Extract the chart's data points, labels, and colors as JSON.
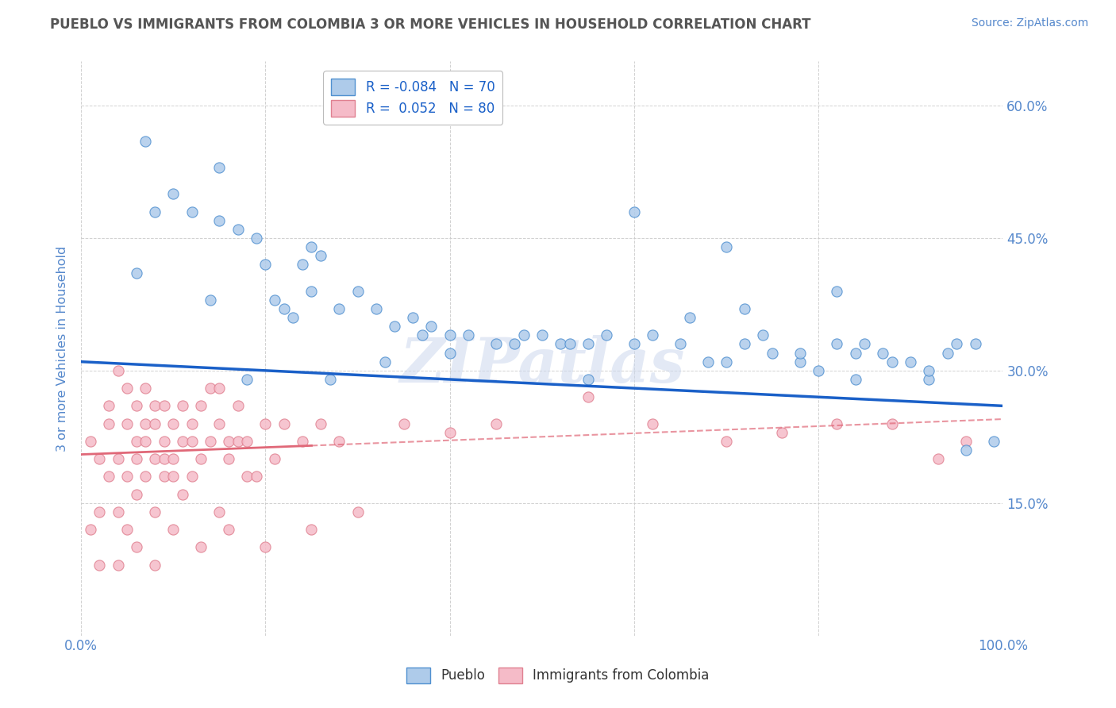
{
  "title": "PUEBLO VS IMMIGRANTS FROM COLOMBIA 3 OR MORE VEHICLES IN HOUSEHOLD CORRELATION CHART",
  "source_text": "Source: ZipAtlas.com",
  "ylabel": "3 or more Vehicles in Household",
  "xlim": [
    0.0,
    100.0
  ],
  "ylim": [
    0.0,
    65.0
  ],
  "yticks": [
    0.0,
    15.0,
    30.0,
    45.0,
    60.0
  ],
  "xticks": [
    0.0,
    20.0,
    40.0,
    60.0,
    80.0,
    100.0
  ],
  "legend_label_blue": "R = -0.084   N = 70",
  "legend_label_pink": "R =  0.052   N = 80",
  "blue_scatter_color": "#aecbea",
  "pink_scatter_color": "#f5bbc8",
  "blue_edge_color": "#5090d0",
  "pink_edge_color": "#e08090",
  "blue_line_color": "#1a60c8",
  "pink_line_color": "#e06878",
  "watermark": "ZIPatlas",
  "watermark_color": "#ccd8ee",
  "background_color": "#ffffff",
  "grid_color": "#cccccc",
  "title_color": "#555555",
  "tick_label_color": "#5588cc",
  "blue_x": [
    7,
    10,
    12,
    15,
    17,
    19,
    20,
    21,
    23,
    24,
    25,
    26,
    28,
    30,
    32,
    34,
    36,
    37,
    38,
    40,
    42,
    45,
    48,
    50,
    52,
    55,
    57,
    60,
    62,
    65,
    68,
    70,
    72,
    74,
    75,
    78,
    80,
    82,
    84,
    85,
    87,
    90,
    92,
    94,
    95,
    97,
    99,
    8,
    14,
    18,
    22,
    27,
    33,
    40,
    47,
    53,
    60,
    66,
    72,
    78,
    84,
    88,
    92,
    96,
    6,
    15,
    25,
    55,
    70,
    82
  ],
  "blue_y": [
    56,
    50,
    48,
    53,
    46,
    45,
    42,
    38,
    36,
    42,
    39,
    43,
    37,
    39,
    37,
    35,
    36,
    34,
    35,
    34,
    34,
    33,
    34,
    34,
    33,
    33,
    34,
    33,
    34,
    33,
    31,
    31,
    33,
    34,
    32,
    31,
    30,
    33,
    32,
    33,
    32,
    31,
    29,
    32,
    33,
    33,
    22,
    48,
    38,
    29,
    37,
    29,
    31,
    32,
    33,
    33,
    48,
    36,
    37,
    32,
    29,
    31,
    30,
    21,
    41,
    47,
    44,
    29,
    44,
    39
  ],
  "pink_x": [
    1,
    1,
    2,
    2,
    2,
    3,
    3,
    3,
    4,
    4,
    4,
    5,
    5,
    5,
    5,
    6,
    6,
    6,
    6,
    7,
    7,
    7,
    7,
    8,
    8,
    8,
    8,
    9,
    9,
    9,
    9,
    10,
    10,
    10,
    11,
    11,
    11,
    12,
    12,
    12,
    13,
    13,
    14,
    14,
    15,
    15,
    15,
    16,
    16,
    17,
    17,
    18,
    18,
    19,
    20,
    21,
    22,
    24,
    26,
    28,
    30,
    35,
    40,
    45,
    55,
    62,
    70,
    76,
    82,
    88,
    93,
    96,
    4,
    6,
    8,
    10,
    13,
    16,
    20,
    25
  ],
  "pink_y": [
    22,
    12,
    20,
    14,
    8,
    24,
    18,
    26,
    20,
    14,
    30,
    24,
    18,
    12,
    28,
    22,
    16,
    26,
    20,
    24,
    18,
    28,
    22,
    20,
    26,
    14,
    24,
    22,
    18,
    26,
    20,
    18,
    24,
    20,
    22,
    16,
    26,
    24,
    18,
    22,
    26,
    20,
    28,
    22,
    28,
    14,
    24,
    22,
    20,
    26,
    22,
    18,
    22,
    18,
    24,
    20,
    24,
    22,
    24,
    22,
    14,
    24,
    23,
    24,
    27,
    24,
    22,
    23,
    24,
    24,
    20,
    22,
    8,
    10,
    8,
    12,
    10,
    12,
    10,
    12
  ],
  "blue_trend": {
    "x_start": 0,
    "x_end": 100,
    "y_start": 31.0,
    "y_end": 26.0
  },
  "pink_trend_solid": {
    "x_start": 0,
    "x_end": 25,
    "y_start": 20.5,
    "y_end": 21.5
  },
  "pink_trend_dashed": {
    "x_start": 25,
    "x_end": 100,
    "y_start": 21.5,
    "y_end": 24.5
  }
}
